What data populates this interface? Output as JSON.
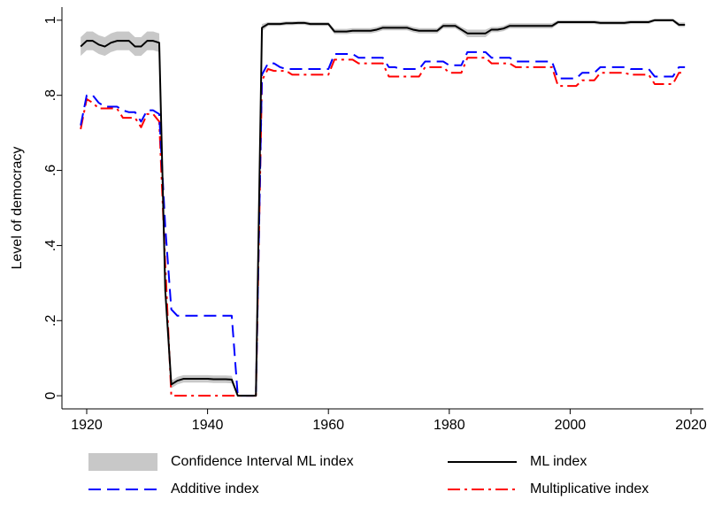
{
  "chart_data": {
    "type": "line",
    "y_label": "Level of democracy",
    "x": [
      1919,
      1920,
      1921,
      1922,
      1923,
      1924,
      1925,
      1926,
      1927,
      1928,
      1929,
      1930,
      1931,
      1932,
      1933,
      1934,
      1935,
      1936,
      1937,
      1938,
      1939,
      1940,
      1941,
      1942,
      1943,
      1944,
      1945,
      1946,
      1947,
      1948,
      1949,
      1950,
      1951,
      1952,
      1953,
      1954,
      1955,
      1956,
      1957,
      1958,
      1959,
      1960,
      1961,
      1962,
      1963,
      1964,
      1965,
      1966,
      1967,
      1968,
      1969,
      1970,
      1971,
      1972,
      1973,
      1974,
      1975,
      1976,
      1977,
      1978,
      1979,
      1980,
      1981,
      1982,
      1983,
      1984,
      1985,
      1986,
      1987,
      1988,
      1989,
      1990,
      1991,
      1992,
      1993,
      1994,
      1995,
      1996,
      1997,
      1998,
      1999,
      2000,
      2001,
      2002,
      2003,
      2004,
      2005,
      2006,
      2007,
      2008,
      2009,
      2010,
      2011,
      2012,
      2013,
      2014,
      2015,
      2016,
      2017,
      2018,
      2019
    ],
    "series": [
      {
        "name": "Confidence Interval ML index",
        "color": "#c8c8c8",
        "lower": [
          0.905,
          0.92,
          0.92,
          0.91,
          0.905,
          0.915,
          0.92,
          0.92,
          0.92,
          0.905,
          0.905,
          0.92,
          0.92,
          0.915,
          0.26,
          0.02,
          0.03,
          0.035,
          0.035,
          0.035,
          0.035,
          0.035,
          0.034,
          0.034,
          0.034,
          0.033,
          0,
          0,
          0,
          0,
          0.97,
          0.985,
          0.985,
          0.985,
          0.987,
          0.987,
          0.988,
          0.988,
          0.985,
          0.985,
          0.985,
          0.985,
          0.963,
          0.963,
          0.963,
          0.965,
          0.965,
          0.965,
          0.965,
          0.968,
          0.973,
          0.973,
          0.973,
          0.973,
          0.973,
          0.968,
          0.965,
          0.965,
          0.965,
          0.965,
          0.978,
          0.978,
          0.978,
          0.968,
          0.955,
          0.955,
          0.955,
          0.955,
          0.968,
          0.968,
          0.971,
          0.978,
          0.978,
          0.978,
          0.978,
          0.978,
          0.978,
          0.978,
          0.978,
          0.99,
          0.99,
          0.99,
          0.99,
          0.99,
          0.99,
          0.99,
          0.988,
          0.988,
          0.988,
          0.988,
          0.988,
          0.99,
          0.99,
          0.99,
          0.99,
          0.996,
          0.996,
          0.996,
          0.996,
          0.982,
          0.982
        ],
        "upper": [
          0.955,
          0.97,
          0.97,
          0.96,
          0.955,
          0.965,
          0.97,
          0.97,
          0.97,
          0.955,
          0.955,
          0.97,
          0.97,
          0.965,
          0.3,
          0.04,
          0.05,
          0.055,
          0.055,
          0.055,
          0.055,
          0.055,
          0.054,
          0.054,
          0.054,
          0.053,
          0,
          0,
          0,
          0,
          0.99,
          0.995,
          0.995,
          0.995,
          0.997,
          0.997,
          0.998,
          0.998,
          0.995,
          0.995,
          0.995,
          0.995,
          0.977,
          0.977,
          0.977,
          0.979,
          0.979,
          0.979,
          0.979,
          0.982,
          0.987,
          0.987,
          0.987,
          0.987,
          0.987,
          0.982,
          0.979,
          0.979,
          0.979,
          0.979,
          0.992,
          0.992,
          0.992,
          0.982,
          0.975,
          0.975,
          0.975,
          0.975,
          0.982,
          0.982,
          0.985,
          0.992,
          0.992,
          0.992,
          0.992,
          0.992,
          0.992,
          0.992,
          0.992,
          1.0,
          1.0,
          1.0,
          1.0,
          1.0,
          1.0,
          1.0,
          0.998,
          0.998,
          0.998,
          0.998,
          0.998,
          1.0,
          1.0,
          1.0,
          1.0,
          1.004,
          1.004,
          1.004,
          1.004,
          0.994,
          0.994
        ]
      },
      {
        "name": "ML index",
        "color": "#000000",
        "style": "solid",
        "values": [
          0.93,
          0.945,
          0.945,
          0.935,
          0.93,
          0.94,
          0.945,
          0.945,
          0.945,
          0.93,
          0.93,
          0.945,
          0.945,
          0.94,
          0.28,
          0.03,
          0.04,
          0.045,
          0.045,
          0.045,
          0.045,
          0.045,
          0.044,
          0.044,
          0.044,
          0.043,
          0,
          0,
          0,
          0,
          0.98,
          0.99,
          0.99,
          0.99,
          0.992,
          0.992,
          0.993,
          0.993,
          0.99,
          0.99,
          0.99,
          0.99,
          0.97,
          0.97,
          0.97,
          0.972,
          0.972,
          0.972,
          0.972,
          0.975,
          0.98,
          0.98,
          0.98,
          0.98,
          0.98,
          0.975,
          0.972,
          0.972,
          0.972,
          0.972,
          0.985,
          0.985,
          0.985,
          0.975,
          0.965,
          0.965,
          0.965,
          0.965,
          0.975,
          0.975,
          0.978,
          0.985,
          0.985,
          0.985,
          0.985,
          0.985,
          0.985,
          0.985,
          0.985,
          0.995,
          0.995,
          0.995,
          0.995,
          0.995,
          0.995,
          0.995,
          0.993,
          0.993,
          0.993,
          0.993,
          0.993,
          0.995,
          0.995,
          0.995,
          0.995,
          1.0,
          1.0,
          1.0,
          1.0,
          0.988,
          0.988
        ]
      },
      {
        "name": "Additive index",
        "color": "#0000ff",
        "style": "dash",
        "values": [
          0.72,
          0.8,
          0.8,
          0.78,
          0.77,
          0.77,
          0.77,
          0.76,
          0.755,
          0.755,
          0.73,
          0.76,
          0.76,
          0.75,
          0.45,
          0.23,
          0.213,
          0.213,
          0.213,
          0.213,
          0.213,
          0.213,
          0.213,
          0.213,
          0.213,
          0.213,
          0,
          0,
          0,
          0,
          0.855,
          0.885,
          0.885,
          0.875,
          0.87,
          0.87,
          0.87,
          0.87,
          0.87,
          0.87,
          0.87,
          0.87,
          0.91,
          0.91,
          0.91,
          0.91,
          0.9,
          0.9,
          0.9,
          0.9,
          0.9,
          0.875,
          0.875,
          0.87,
          0.87,
          0.87,
          0.87,
          0.89,
          0.89,
          0.89,
          0.89,
          0.88,
          0.88,
          0.88,
          0.915,
          0.915,
          0.915,
          0.915,
          0.9,
          0.9,
          0.9,
          0.9,
          0.89,
          0.89,
          0.89,
          0.89,
          0.89,
          0.89,
          0.89,
          0.845,
          0.845,
          0.845,
          0.845,
          0.86,
          0.86,
          0.86,
          0.875,
          0.875,
          0.875,
          0.875,
          0.875,
          0.87,
          0.87,
          0.87,
          0.87,
          0.85,
          0.85,
          0.85,
          0.85,
          0.875,
          0.875
        ]
      },
      {
        "name": "Multiplicative index",
        "color": "#ff0000",
        "style": "dashdot",
        "values": [
          0.71,
          0.79,
          0.78,
          0.765,
          0.765,
          0.765,
          0.765,
          0.74,
          0.74,
          0.74,
          0.715,
          0.75,
          0.75,
          0.73,
          0.35,
          0,
          0,
          0,
          0,
          0,
          0,
          0,
          0,
          0,
          0,
          0,
          0,
          0,
          0,
          0,
          0.84,
          0.87,
          0.865,
          0.865,
          0.865,
          0.855,
          0.855,
          0.855,
          0.855,
          0.855,
          0.855,
          0.855,
          0.895,
          0.895,
          0.895,
          0.895,
          0.885,
          0.885,
          0.885,
          0.885,
          0.885,
          0.85,
          0.85,
          0.85,
          0.85,
          0.85,
          0.85,
          0.875,
          0.875,
          0.875,
          0.875,
          0.86,
          0.86,
          0.86,
          0.9,
          0.9,
          0.9,
          0.9,
          0.885,
          0.885,
          0.885,
          0.885,
          0.875,
          0.875,
          0.875,
          0.875,
          0.875,
          0.875,
          0.875,
          0.825,
          0.825,
          0.825,
          0.825,
          0.84,
          0.84,
          0.84,
          0.86,
          0.86,
          0.86,
          0.86,
          0.86,
          0.855,
          0.855,
          0.855,
          0.855,
          0.83,
          0.83,
          0.83,
          0.83,
          0.86,
          0.86
        ]
      }
    ],
    "xlim": [
      1915.9,
      2022.05
    ],
    "xticks": [
      1920,
      1940,
      1960,
      1980,
      2000,
      2020
    ],
    "ylim": [
      -0.035,
      1.035
    ],
    "yticks": [
      0,
      {
        "value": 0.2,
        "label": ".2"
      },
      {
        "value": 0.4,
        "label": ".4"
      },
      {
        "value": 0.6,
        "label": ".6"
      },
      {
        "value": 0.8,
        "label": ".8"
      },
      1
    ],
    "grid": false,
    "legend": "bottom"
  }
}
